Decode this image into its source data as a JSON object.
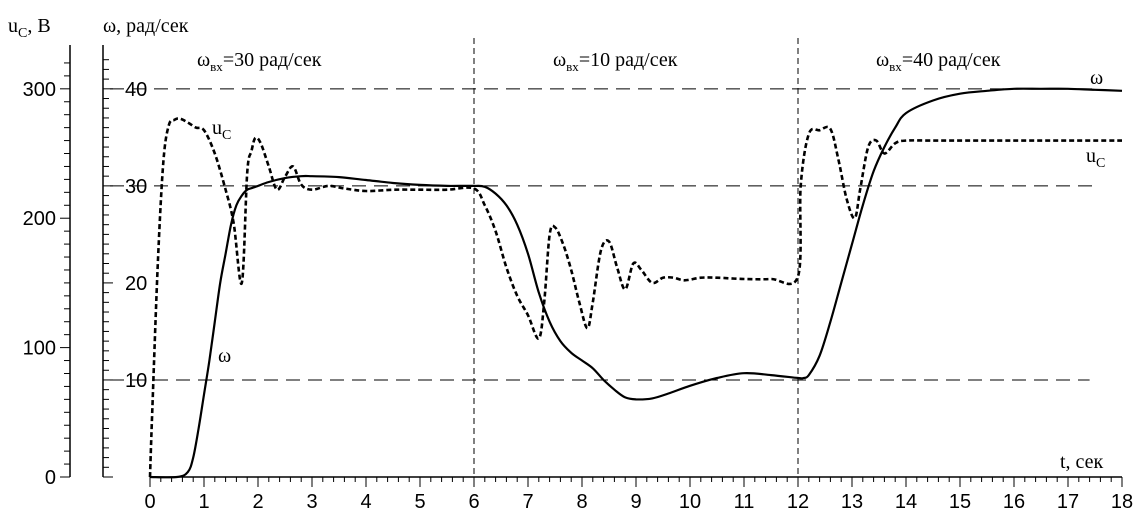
{
  "chart_data": {
    "type": "line",
    "axes": {
      "left_outer": {
        "label": "u",
        "label_sub": "C",
        "label_suffix": ", В",
        "range": [
          0,
          330
        ],
        "major_ticks": [
          0,
          100,
          200,
          300
        ]
      },
      "left_inner": {
        "label": "ω, рад/сек",
        "range": [
          0,
          44
        ],
        "major_ticks": [
          10,
          20,
          30,
          40
        ]
      },
      "x": {
        "label": "t, сек",
        "range": [
          0,
          18
        ],
        "ticks": [
          0,
          1,
          2,
          3,
          4,
          5,
          6,
          7,
          8,
          9,
          10,
          11,
          12,
          13,
          14,
          15,
          16,
          17,
          18
        ]
      }
    },
    "segments": [
      {
        "text_main": "ω",
        "text_sub": "вх",
        "text_rest": "=30 рад/сек"
      },
      {
        "text_main": "ω",
        "text_sub": "вх",
        "text_rest": "=10 рад/сек"
      },
      {
        "text_main": "ω",
        "text_sub": "вх",
        "text_rest": "=40 рад/сек"
      }
    ],
    "segment_boundaries": [
      6,
      12
    ],
    "reference_lines_omega": [
      10,
      30,
      40
    ],
    "series": [
      {
        "name": "ω",
        "axis": "omega",
        "style": "solid",
        "x": [
          0,
          0.5,
          0.7,
          0.8,
          0.9,
          1.0,
          1.1,
          1.2,
          1.3,
          1.4,
          1.5,
          1.6,
          1.7,
          1.8,
          1.9,
          2.0,
          2.2,
          2.5,
          2.8,
          3.0,
          3.5,
          4.0,
          4.5,
          5.0,
          5.5,
          6.0,
          6.2,
          6.4,
          6.6,
          6.8,
          7.0,
          7.2,
          7.4,
          7.6,
          7.8,
          8.0,
          8.2,
          8.4,
          8.6,
          8.8,
          9.0,
          9.3,
          9.6,
          10.0,
          10.5,
          11.0,
          11.5,
          12.0,
          12.1,
          12.2,
          12.4,
          12.6,
          12.8,
          13.0,
          13.2,
          13.4,
          13.6,
          13.8,
          14.0,
          14.5,
          15.0,
          15.5,
          16.0,
          16.5,
          17.0,
          17.5,
          18.0
        ],
        "y": [
          0,
          0,
          0.5,
          2,
          5,
          8.5,
          12,
          16,
          20,
          23,
          26,
          28,
          29,
          29.6,
          29.8,
          30,
          30.4,
          30.8,
          31,
          31,
          30.9,
          30.6,
          30.3,
          30.1,
          30,
          30,
          29.9,
          29.2,
          28,
          26,
          23,
          19,
          16,
          14,
          12.8,
          12,
          11.2,
          10,
          9,
          8.2,
          8.0,
          8.1,
          8.6,
          9.4,
          10.2,
          10.7,
          10.5,
          10.2,
          10.2,
          10.5,
          12.5,
          16,
          20,
          24,
          28,
          31.5,
          34,
          36,
          37.5,
          38.8,
          39.5,
          39.8,
          40,
          40,
          40,
          39.9,
          39.8
        ]
      },
      {
        "name": "u",
        "name_sub": "C",
        "axis": "voltage",
        "style": "dashed",
        "x": [
          0,
          0.05,
          0.15,
          0.25,
          0.35,
          0.45,
          0.55,
          0.7,
          0.85,
          1.0,
          1.2,
          1.4,
          1.55,
          1.7,
          1.8,
          1.88,
          1.95,
          2.05,
          2.2,
          2.35,
          2.5,
          2.65,
          2.8,
          3.0,
          3.3,
          3.6,
          4.0,
          4.5,
          5.0,
          5.5,
          6.0,
          6.2,
          6.4,
          6.6,
          6.8,
          7.0,
          7.2,
          7.3,
          7.4,
          7.5,
          7.65,
          7.8,
          7.95,
          8.1,
          8.2,
          8.35,
          8.5,
          8.65,
          8.8,
          8.95,
          9.1,
          9.3,
          9.5,
          9.7,
          9.9,
          10.2,
          10.5,
          11.0,
          11.5,
          12.0,
          12.05,
          12.2,
          12.4,
          12.6,
          12.75,
          12.9,
          13.05,
          13.15,
          13.3,
          13.45,
          13.6,
          13.8,
          14.0,
          14.5,
          15.0,
          16.0,
          17.0,
          18.0
        ],
        "y": [
          0,
          60,
          170,
          245,
          272,
          276,
          277,
          274,
          270,
          268,
          250,
          222,
          196,
          150,
          235,
          252,
          262,
          258,
          240,
          222,
          232,
          240,
          226,
          222,
          225,
          223,
          221,
          222,
          222,
          222,
          223,
          210,
          190,
          162,
          140,
          125,
          107,
          135,
          187,
          193,
          180,
          160,
          135,
          115,
          135,
          175,
          182,
          162,
          145,
          165,
          160,
          150,
          154,
          154,
          152,
          154,
          154,
          153,
          153,
          155,
          225,
          265,
          268,
          269,
          245,
          215,
          200,
          222,
          255,
          260,
          250,
          258,
          260,
          260,
          260,
          260,
          260,
          260
        ]
      }
    ]
  }
}
